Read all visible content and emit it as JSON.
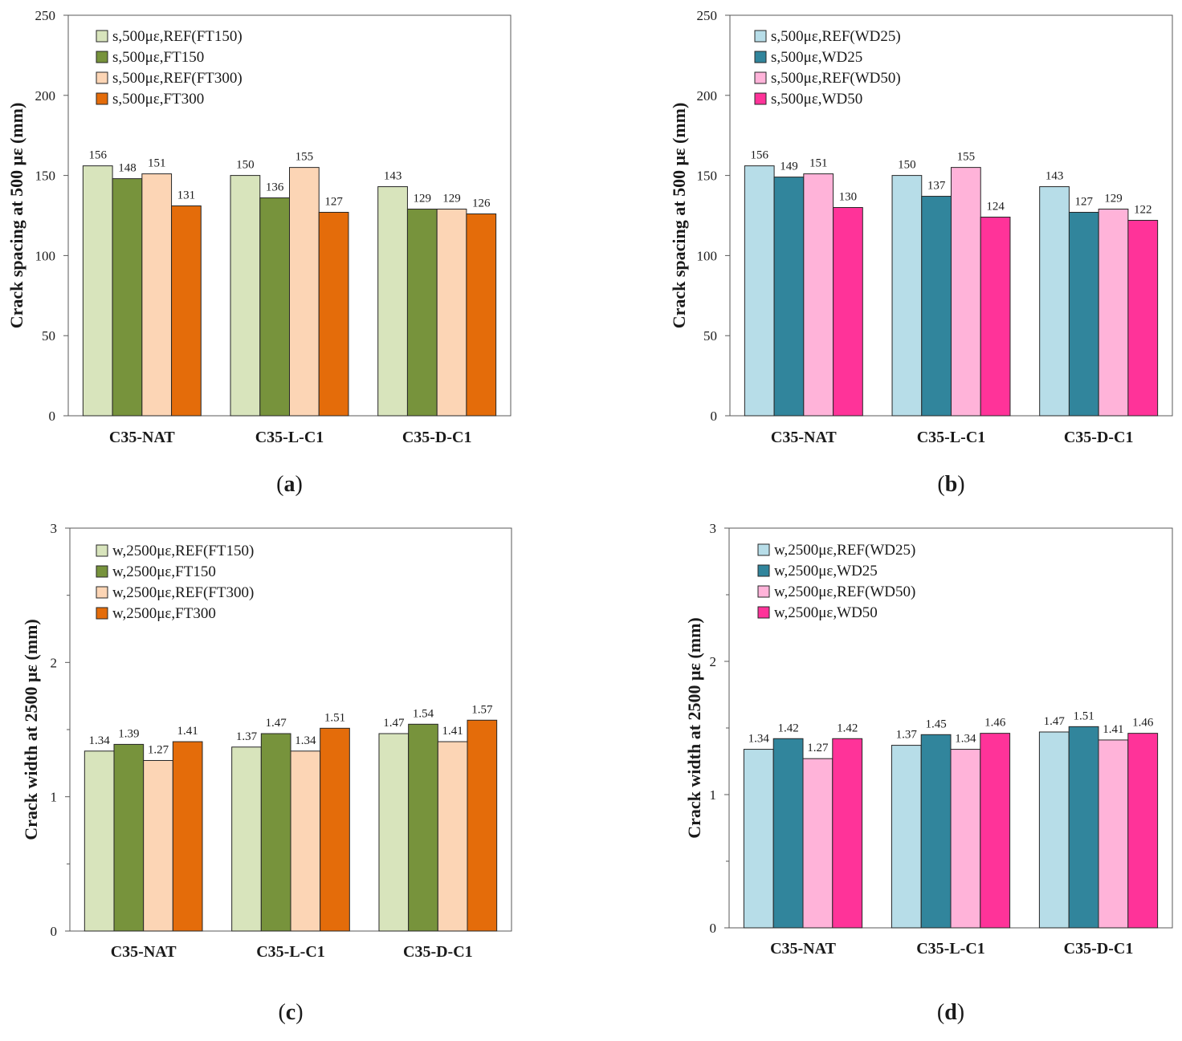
{
  "chart_data": [
    {
      "type": "bar",
      "panel_label": "a",
      "ylabel": "Crack spacing at 500 με (mm)",
      "ylim": [
        0,
        250
      ],
      "yticks": [
        0,
        50,
        100,
        150,
        200,
        250
      ],
      "ytick_labels": [
        "0",
        "50",
        "100",
        "150",
        "200",
        "250"
      ],
      "categories": [
        "C35-NAT",
        "C35-L-C1",
        "C35-D-C1"
      ],
      "legend_position": "top-left",
      "series": [
        {
          "name": "s,500με,REF(FT150)",
          "color": "#d8e4bc",
          "values": [
            156,
            150,
            143
          ],
          "labels": [
            "156",
            "150",
            "143"
          ]
        },
        {
          "name": "s,500με,FT150",
          "color": "#77933c",
          "values": [
            148,
            136,
            129
          ],
          "labels": [
            "148",
            "136",
            "129"
          ]
        },
        {
          "name": "s,500με,REF(FT300)",
          "color": "#fcd5b5",
          "values": [
            151,
            155,
            129
          ],
          "labels": [
            "151",
            "155",
            "129"
          ]
        },
        {
          "name": "s,500με,FT300",
          "color": "#e46c0a",
          "values": [
            131,
            127,
            126
          ],
          "labels": [
            "131",
            "127",
            "126"
          ]
        }
      ]
    },
    {
      "type": "bar",
      "panel_label": "b",
      "ylabel": "Crack spacing at 500 με (mm)",
      "ylim": [
        0,
        250
      ],
      "yticks": [
        0,
        50,
        100,
        150,
        200,
        250
      ],
      "ytick_labels": [
        "0",
        "50",
        "100",
        "150",
        "200",
        "250"
      ],
      "categories": [
        "C35-NAT",
        "C35-L-C1",
        "C35-D-C1"
      ],
      "legend_position": "top-left",
      "series": [
        {
          "name": "s,500με,REF(WD25)",
          "color": "#b7dde8",
          "values": [
            156,
            150,
            143
          ],
          "labels": [
            "156",
            "150",
            "143"
          ]
        },
        {
          "name": "s,500με,WD25",
          "color": "#31859c",
          "values": [
            149,
            137,
            127
          ],
          "labels": [
            "149",
            "137",
            "127"
          ]
        },
        {
          "name": "s,500με,REF(WD50)",
          "color": "#ffb3d9",
          "values": [
            151,
            155,
            129
          ],
          "labels": [
            "151",
            "155",
            "129"
          ]
        },
        {
          "name": "s,500με,WD50",
          "color": "#ff3399",
          "values": [
            130,
            124,
            122
          ],
          "labels": [
            "130",
            "124",
            "122"
          ]
        }
      ]
    },
    {
      "type": "bar",
      "panel_label": "c",
      "ylabel": "Crack width at 2500 με (mm)",
      "ylim": [
        0,
        3
      ],
      "yticks": [
        0,
        1,
        2,
        3
      ],
      "ytick_labels": [
        "0",
        "1",
        "2",
        "3"
      ],
      "minor_ticks": [
        0.5,
        1.5,
        2.5
      ],
      "categories": [
        "C35-NAT",
        "C35-L-C1",
        "C35-D-C1"
      ],
      "legend_position": "top-left",
      "series": [
        {
          "name": "w,2500με,REF(FT150)",
          "color": "#d8e4bc",
          "values": [
            1.34,
            1.37,
            1.47
          ],
          "labels": [
            "1.34",
            "1.37",
            "1.47"
          ]
        },
        {
          "name": "w,2500με,FT150",
          "color": "#77933c",
          "values": [
            1.39,
            1.47,
            1.54
          ],
          "labels": [
            "1.39",
            "1.47",
            "1.54"
          ]
        },
        {
          "name": "w,2500με,REF(FT300)",
          "color": "#fcd5b5",
          "values": [
            1.27,
            1.34,
            1.41
          ],
          "labels": [
            "1.27",
            "1.34",
            "1.41"
          ]
        },
        {
          "name": "w,2500με,FT300",
          "color": "#e46c0a",
          "values": [
            1.41,
            1.51,
            1.57
          ],
          "labels": [
            "1.41",
            "1.51",
            "1.57"
          ]
        }
      ]
    },
    {
      "type": "bar",
      "panel_label": "d",
      "ylabel": "Crack width at 2500 με (mm)",
      "ylim": [
        0,
        3
      ],
      "yticks": [
        0,
        1,
        2,
        3
      ],
      "ytick_labels": [
        "0",
        "1",
        "2",
        "3"
      ],
      "minor_ticks": [
        0.5,
        1.5,
        2.5
      ],
      "categories": [
        "C35-NAT",
        "C35-L-C1",
        "C35-D-C1"
      ],
      "legend_position": "top-left",
      "series": [
        {
          "name": "w,2500με,REF(WD25)",
          "color": "#b7dde8",
          "values": [
            1.34,
            1.37,
            1.47
          ],
          "labels": [
            "1.34",
            "1.37",
            "1.47"
          ]
        },
        {
          "name": "w,2500με,WD25",
          "color": "#31859c",
          "values": [
            1.42,
            1.45,
            1.51
          ],
          "labels": [
            "1.42",
            "1.45",
            "1.51"
          ]
        },
        {
          "name": "w,2500με,REF(WD50)",
          "color": "#ffb3d9",
          "values": [
            1.27,
            1.34,
            1.41
          ],
          "labels": [
            "1.27",
            "1.34",
            "1.41"
          ]
        },
        {
          "name": "w,2500με,WD50",
          "color": "#ff3399",
          "values": [
            1.42,
            1.46,
            1.46
          ],
          "labels": [
            "1.42",
            "1.46",
            "1.46"
          ]
        }
      ]
    }
  ]
}
